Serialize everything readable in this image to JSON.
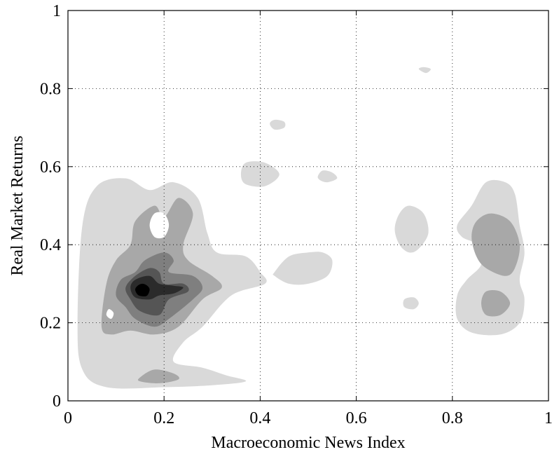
{
  "chart_data": {
    "type": "contour",
    "xlabel": "Macroeconomic News Index",
    "ylabel": "Real Market Returns",
    "xlim": [
      0,
      1
    ],
    "ylim": [
      0,
      1
    ],
    "xticks": [
      "0",
      "0.2",
      "0.4",
      "0.6",
      "0.8",
      "1"
    ],
    "yticks": [
      "0",
      "0.2",
      "0.4",
      "0.6",
      "0.8",
      "1"
    ],
    "grid": true,
    "grid_style": "dotted",
    "colormap": [
      "#d9d9d9",
      "#a8a8a8",
      "#7f7f7f",
      "#555555",
      "#2b2b2b",
      "#000000"
    ],
    "contour_levels": [
      {
        "level": 1,
        "color": "#d9d9d9",
        "regions": [
          [
            [
              0.03,
              0.08
            ],
            [
              0.02,
              0.2
            ],
            [
              0.03,
              0.45
            ],
            [
              0.06,
              0.55
            ],
            [
              0.12,
              0.57
            ],
            [
              0.17,
              0.54
            ],
            [
              0.22,
              0.56
            ],
            [
              0.27,
              0.52
            ],
            [
              0.29,
              0.43
            ],
            [
              0.31,
              0.38
            ],
            [
              0.37,
              0.37
            ],
            [
              0.4,
              0.33
            ],
            [
              0.41,
              0.3
            ],
            [
              0.34,
              0.27
            ],
            [
              0.28,
              0.19
            ],
            [
              0.24,
              0.15
            ],
            [
              0.22,
              0.1
            ],
            [
              0.28,
              0.085
            ],
            [
              0.33,
              0.065
            ],
            [
              0.37,
              0.05
            ],
            [
              0.3,
              0.04
            ],
            [
              0.2,
              0.035
            ],
            [
              0.08,
              0.035
            ]
          ],
          [
            [
              0.43,
              0.33
            ],
            [
              0.46,
              0.37
            ],
            [
              0.5,
              0.38
            ],
            [
              0.53,
              0.38
            ],
            [
              0.55,
              0.36
            ],
            [
              0.54,
              0.32
            ],
            [
              0.5,
              0.3
            ],
            [
              0.46,
              0.3
            ],
            [
              0.43,
              0.32
            ]
          ],
          [
            [
              0.36,
              0.58
            ],
            [
              0.37,
              0.61
            ],
            [
              0.41,
              0.61
            ],
            [
              0.44,
              0.58
            ],
            [
              0.41,
              0.55
            ],
            [
              0.37,
              0.555
            ]
          ],
          [
            [
              0.42,
              0.71
            ],
            [
              0.43,
              0.72
            ],
            [
              0.45,
              0.715
            ],
            [
              0.45,
              0.7
            ],
            [
              0.43,
              0.695
            ]
          ],
          [
            [
              0.52,
              0.575
            ],
            [
              0.53,
              0.59
            ],
            [
              0.55,
              0.585
            ],
            [
              0.56,
              0.57
            ],
            [
              0.54,
              0.56
            ],
            [
              0.525,
              0.565
            ]
          ],
          [
            [
              0.73,
              0.85
            ],
            [
              0.74,
              0.855
            ],
            [
              0.755,
              0.85
            ],
            [
              0.745,
              0.84
            ]
          ],
          [
            [
              0.68,
              0.44
            ],
            [
              0.69,
              0.48
            ],
            [
              0.71,
              0.5
            ],
            [
              0.74,
              0.48
            ],
            [
              0.75,
              0.43
            ],
            [
              0.73,
              0.39
            ],
            [
              0.71,
              0.38
            ],
            [
              0.69,
              0.4
            ]
          ],
          [
            [
              0.7,
              0.24
            ],
            [
              0.7,
              0.26
            ],
            [
              0.72,
              0.265
            ],
            [
              0.73,
              0.25
            ],
            [
              0.72,
              0.235
            ]
          ],
          [
            [
              0.81,
              0.45
            ],
            [
              0.84,
              0.5
            ],
            [
              0.87,
              0.56
            ],
            [
              0.91,
              0.56
            ],
            [
              0.93,
              0.53
            ],
            [
              0.94,
              0.45
            ],
            [
              0.95,
              0.38
            ],
            [
              0.94,
              0.31
            ],
            [
              0.95,
              0.26
            ],
            [
              0.94,
              0.2
            ],
            [
              0.9,
              0.17
            ],
            [
              0.84,
              0.175
            ],
            [
              0.81,
              0.21
            ],
            [
              0.81,
              0.27
            ],
            [
              0.83,
              0.31
            ],
            [
              0.86,
              0.35
            ],
            [
              0.85,
              0.4
            ],
            [
              0.82,
              0.42
            ]
          ]
        ]
      },
      {
        "level": 2,
        "color": "#a8a8a8",
        "regions": [
          [
            [
              0.07,
              0.19
            ],
            [
              0.08,
              0.3
            ],
            [
              0.1,
              0.36
            ],
            [
              0.13,
              0.4
            ],
            [
              0.14,
              0.46
            ],
            [
              0.18,
              0.5
            ],
            [
              0.2,
              0.47
            ],
            [
              0.23,
              0.52
            ],
            [
              0.26,
              0.48
            ],
            [
              0.24,
              0.4
            ],
            [
              0.25,
              0.36
            ],
            [
              0.3,
              0.32
            ],
            [
              0.32,
              0.29
            ],
            [
              0.28,
              0.26
            ],
            [
              0.23,
              0.19
            ],
            [
              0.18,
              0.17
            ],
            [
              0.13,
              0.18
            ],
            [
              0.09,
              0.17
            ]
          ],
          [
            [
              0.15,
              0.06
            ],
            [
              0.18,
              0.08
            ],
            [
              0.22,
              0.07
            ],
            [
              0.23,
              0.055
            ],
            [
              0.19,
              0.045
            ],
            [
              0.15,
              0.05
            ]
          ],
          [
            [
              0.84,
              0.42
            ],
            [
              0.85,
              0.46
            ],
            [
              0.88,
              0.48
            ],
            [
              0.92,
              0.46
            ],
            [
              0.94,
              0.4
            ],
            [
              0.93,
              0.34
            ],
            [
              0.91,
              0.32
            ],
            [
              0.87,
              0.34
            ],
            [
              0.85,
              0.37
            ]
          ],
          [
            [
              0.86,
              0.25
            ],
            [
              0.87,
              0.28
            ],
            [
              0.9,
              0.28
            ],
            [
              0.92,
              0.25
            ],
            [
              0.9,
              0.22
            ],
            [
              0.87,
              0.22
            ]
          ]
        ]
      },
      {
        "level": 3,
        "color": "#7f7f7f",
        "regions": [
          [
            [
              0.1,
              0.27
            ],
            [
              0.11,
              0.31
            ],
            [
              0.14,
              0.33
            ],
            [
              0.16,
              0.36
            ],
            [
              0.2,
              0.38
            ],
            [
              0.22,
              0.36
            ],
            [
              0.21,
              0.33
            ],
            [
              0.26,
              0.32
            ],
            [
              0.28,
              0.29
            ],
            [
              0.26,
              0.26
            ],
            [
              0.21,
              0.21
            ],
            [
              0.18,
              0.19
            ],
            [
              0.14,
              0.21
            ],
            [
              0.12,
              0.24
            ]
          ]
        ]
      },
      {
        "level": 4,
        "color": "#555555",
        "regions": [
          [
            [
              0.12,
              0.29
            ],
            [
              0.14,
              0.32
            ],
            [
              0.17,
              0.34
            ],
            [
              0.19,
              0.33
            ],
            [
              0.2,
              0.3
            ],
            [
              0.24,
              0.3
            ],
            [
              0.25,
              0.28
            ],
            [
              0.21,
              0.26
            ],
            [
              0.19,
              0.22
            ],
            [
              0.15,
              0.23
            ],
            [
              0.13,
              0.26
            ]
          ]
        ]
      },
      {
        "level": 5,
        "color": "#2b2b2b",
        "regions": [
          [
            [
              0.13,
              0.29
            ],
            [
              0.14,
              0.31
            ],
            [
              0.17,
              0.32
            ],
            [
              0.19,
              0.3
            ],
            [
              0.22,
              0.295
            ],
            [
              0.24,
              0.29
            ],
            [
              0.22,
              0.275
            ],
            [
              0.19,
              0.27
            ],
            [
              0.17,
              0.26
            ],
            [
              0.14,
              0.265
            ]
          ]
        ]
      },
      {
        "level": 6,
        "color": "#000000",
        "regions": [
          [
            [
              0.14,
              0.285
            ],
            [
              0.145,
              0.295
            ],
            [
              0.155,
              0.3
            ],
            [
              0.165,
              0.295
            ],
            [
              0.17,
              0.285
            ],
            [
              0.165,
              0.27
            ],
            [
              0.155,
              0.268
            ],
            [
              0.145,
              0.272
            ]
          ]
        ]
      }
    ],
    "holes": [
      [
        [
          0.08,
          0.22
        ],
        [
          0.085,
          0.235
        ],
        [
          0.095,
          0.225
        ],
        [
          0.09,
          0.21
        ]
      ],
      [
        [
          0.17,
          0.45
        ],
        [
          0.18,
          0.48
        ],
        [
          0.2,
          0.48
        ],
        [
          0.21,
          0.45
        ],
        [
          0.2,
          0.42
        ],
        [
          0.18,
          0.42
        ]
      ]
    ]
  }
}
